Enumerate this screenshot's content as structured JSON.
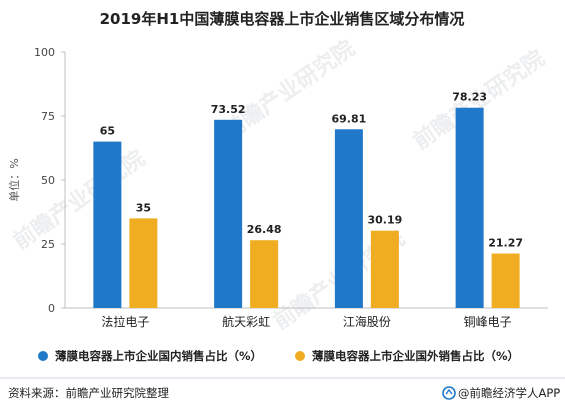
{
  "chart_data": {
    "type": "bar",
    "title": "2019年H1中国薄膜电容器上市企业销售区域分布情况",
    "ylabel": "单位：%",
    "ylim": [
      0,
      100
    ],
    "yticks": [
      0,
      25,
      50,
      75,
      100
    ],
    "categories": [
      "法拉电子",
      "航天彩虹",
      "江海股份",
      "铜峰电子"
    ],
    "series": [
      {
        "name": "薄膜电容器上市企业国内销售占比（%）",
        "color": "#1f78c8",
        "values": [
          65,
          73.52,
          69.81,
          78.23
        ],
        "labels": [
          "65",
          "73.52",
          "69.81",
          "78.23"
        ]
      },
      {
        "name": "薄膜电容器上市企业国外销售占比（%）",
        "color": "#f0ad22",
        "values": [
          35,
          26.48,
          30.19,
          21.27
        ],
        "labels": [
          "35",
          "26.48",
          "30.19",
          "21.27"
        ]
      }
    ],
    "grid": false,
    "legend": "bottom"
  },
  "footer": {
    "source": "资料来源：前瞻产业研究院整理",
    "brand": "@前瞻经济学人APP"
  },
  "watermark": {
    "text": "前瞻产业研究院"
  }
}
